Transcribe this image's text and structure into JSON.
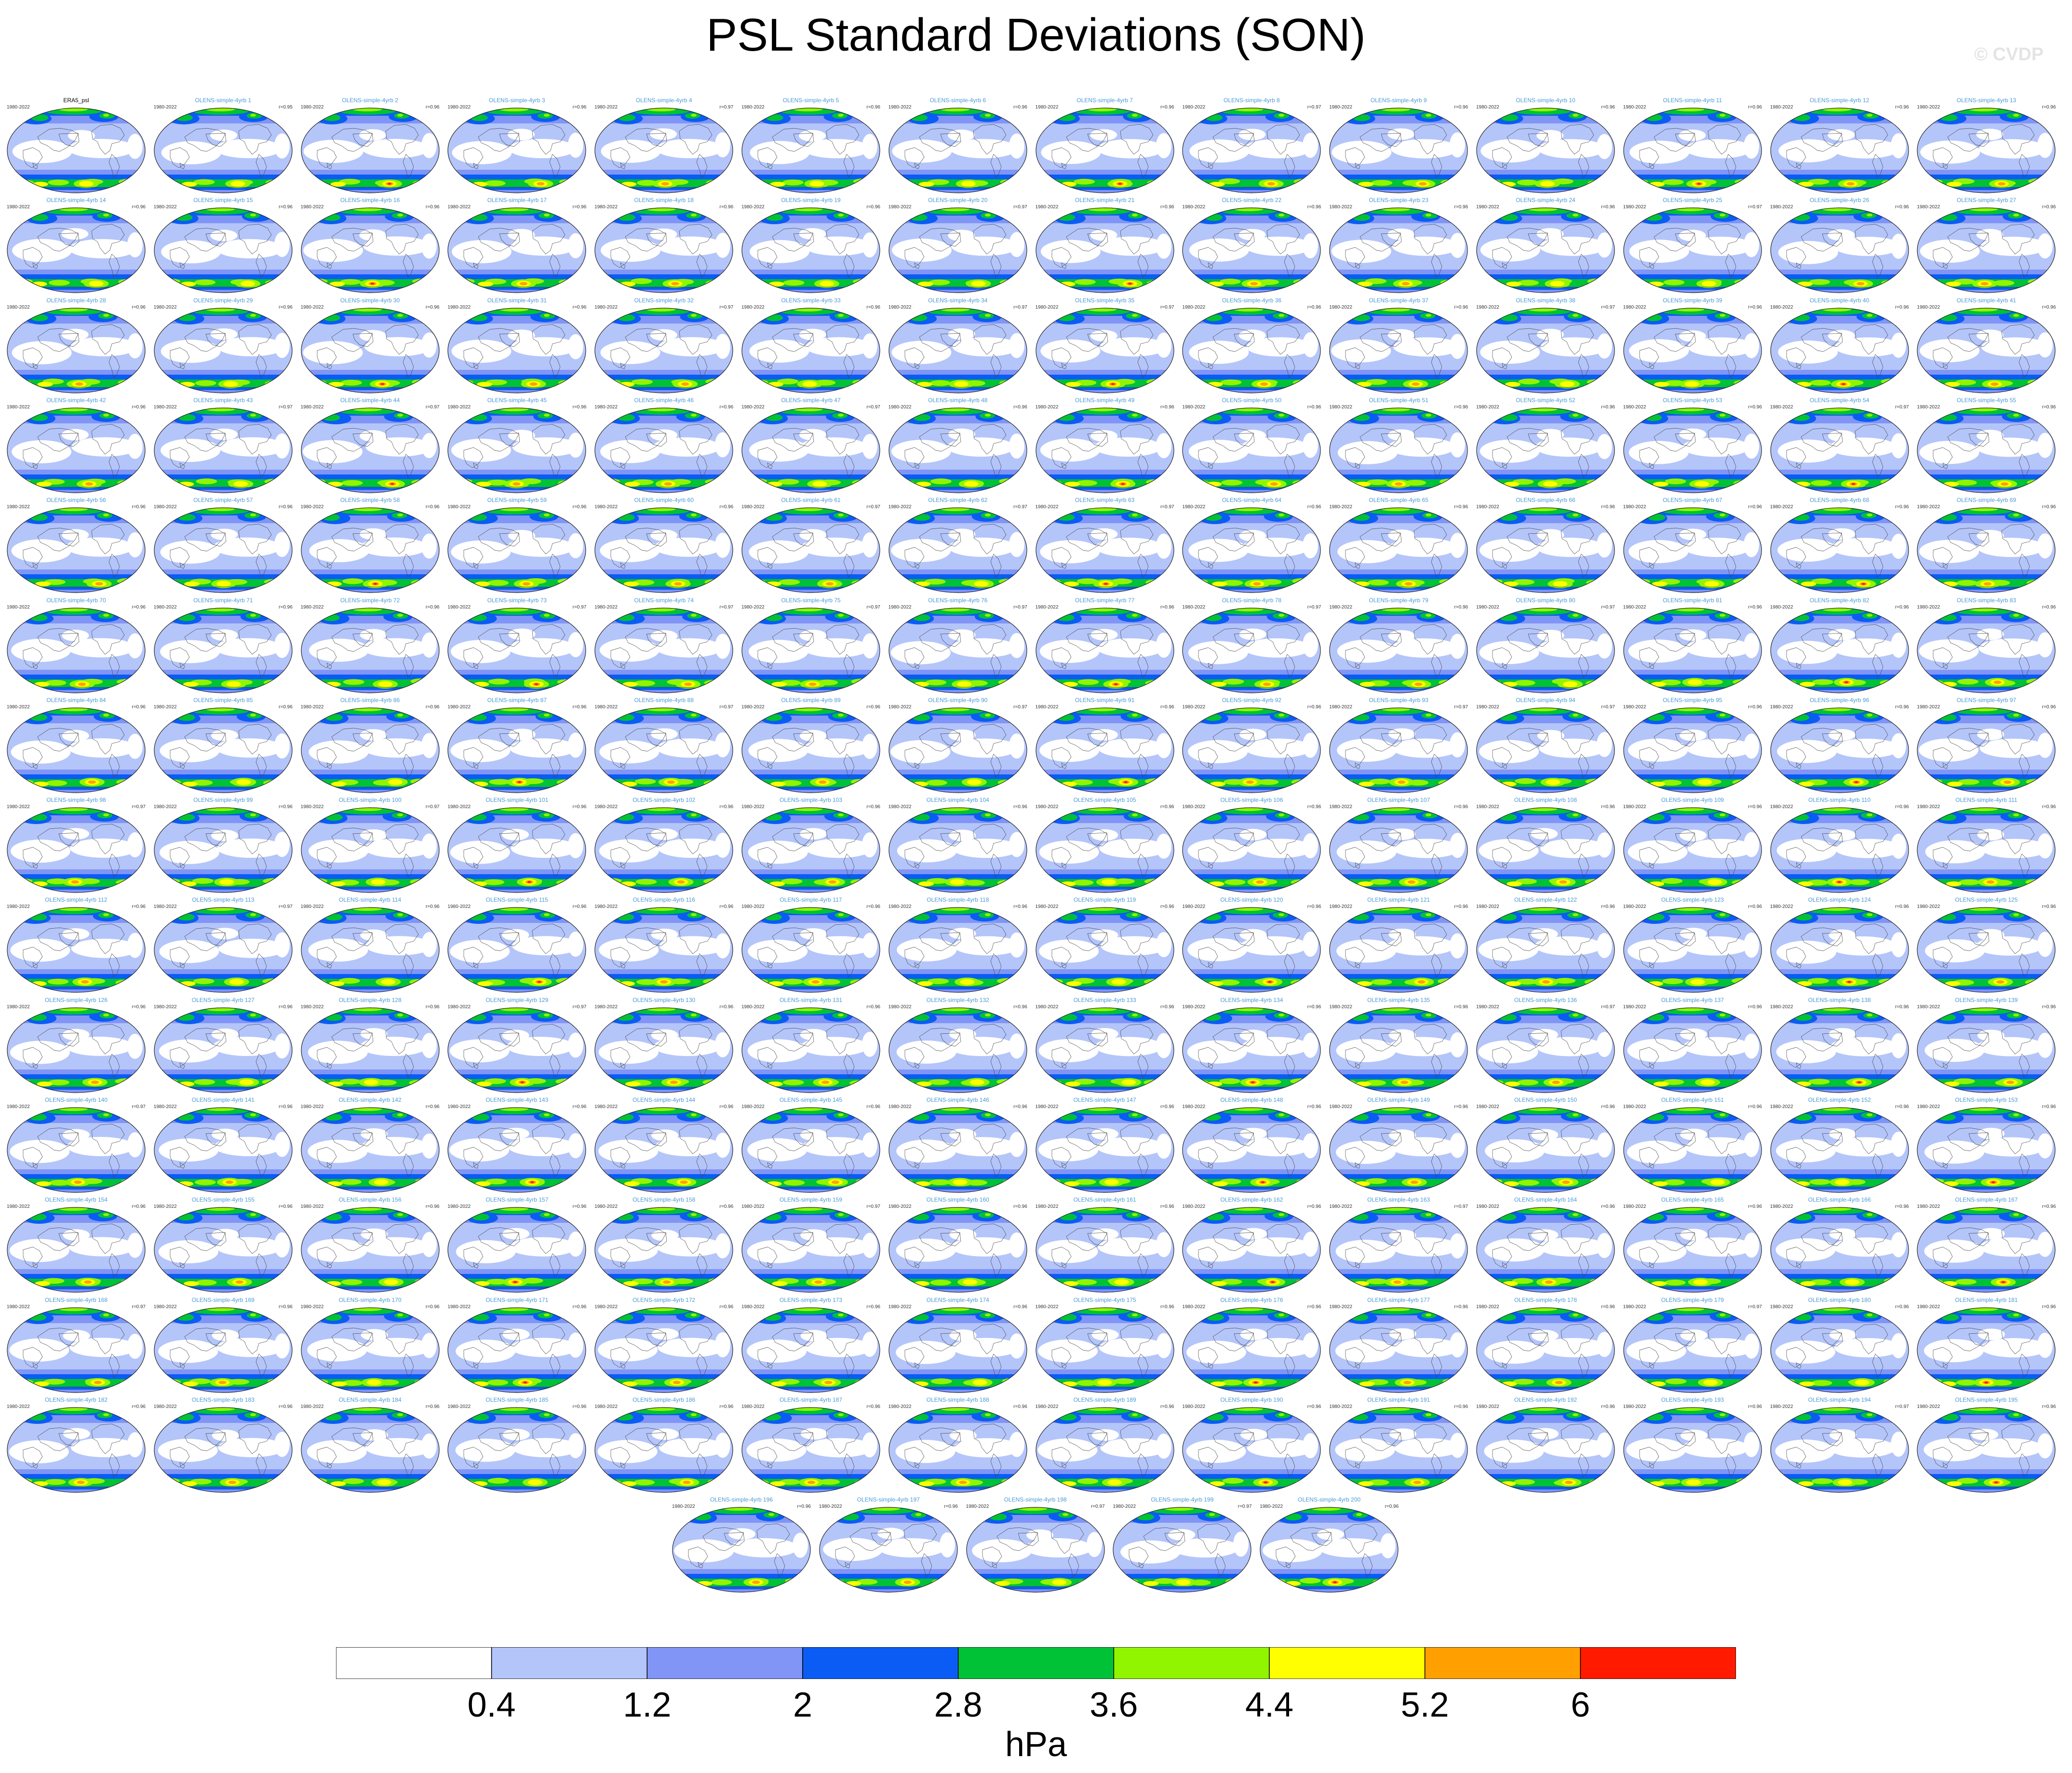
{
  "title": "PSL Standard Deviations (SON)",
  "watermark": "© CVDP",
  "panel_period": "1980-2022",
  "panels": [
    {
      "name": "ERA5_psl",
      "corr": ""
    },
    {
      "name": "OLENS-simple-4yrb 1",
      "corr": "r=0.95"
    },
    {
      "name": "OLENS-simple-4yrb 2",
      "corr": "r=0.96"
    },
    {
      "name": "OLENS-simple-4yrb 3",
      "corr": "r=0.96"
    },
    {
      "name": "OLENS-simple-4yrb 4",
      "corr": "r=0.97"
    },
    {
      "name": "OLENS-simple-4yrb 5",
      "corr": "r=0.96"
    },
    {
      "name": "OLENS-simple-4yrb 6",
      "corr": "r=0.96"
    },
    {
      "name": "OLENS-simple-4yrb 7",
      "corr": "r=0.96"
    },
    {
      "name": "OLENS-simple-4yrb 8",
      "corr": "r=0.97"
    },
    {
      "name": "OLENS-simple-4yrb 9",
      "corr": "r=0.96"
    },
    {
      "name": "OLENS-simple-4yrb 10",
      "corr": "r=0.96"
    },
    {
      "name": "OLENS-simple-4yrb 11",
      "corr": "r=0.96"
    },
    {
      "name": "OLENS-simple-4yrb 12",
      "corr": "r=0.96"
    },
    {
      "name": "OLENS-simple-4yrb 13",
      "corr": "r=0.96"
    },
    {
      "name": "OLENS-simple-4yrb 14",
      "corr": "r=0.96"
    },
    {
      "name": "OLENS-simple-4yrb 15",
      "corr": "r=0.96"
    },
    {
      "name": "OLENS-simple-4yrb 16",
      "corr": "r=0.96"
    },
    {
      "name": "OLENS-simple-4yrb 17",
      "corr": "r=0.96"
    },
    {
      "name": "OLENS-simple-4yrb 18",
      "corr": "r=0.96"
    },
    {
      "name": "OLENS-simple-4yrb 19",
      "corr": "r=0.96"
    },
    {
      "name": "OLENS-simple-4yrb 20",
      "corr": "r=0.97"
    },
    {
      "name": "OLENS-simple-4yrb 21",
      "corr": "r=0.96"
    },
    {
      "name": "OLENS-simple-4yrb 22",
      "corr": "r=0.96"
    },
    {
      "name": "OLENS-simple-4yrb 23",
      "corr": "r=0.96"
    },
    {
      "name": "OLENS-simple-4yrb 24",
      "corr": "r=0.96"
    },
    {
      "name": "OLENS-simple-4yrb 25",
      "corr": "r=0.97"
    },
    {
      "name": "OLENS-simple-4yrb 26",
      "corr": "r=0.96"
    },
    {
      "name": "OLENS-simple-4yrb 27",
      "corr": "r=0.96"
    },
    {
      "name": "OLENS-simple-4yrb 28",
      "corr": "r=0.96"
    },
    {
      "name": "OLENS-simple-4yrb 29",
      "corr": "r=0.96"
    },
    {
      "name": "OLENS-simple-4yrb 30",
      "corr": "r=0.96"
    },
    {
      "name": "OLENS-simple-4yrb 31",
      "corr": "r=0.96"
    },
    {
      "name": "OLENS-simple-4yrb 32",
      "corr": "r=0.97"
    },
    {
      "name": "OLENS-simple-4yrb 33",
      "corr": "r=0.96"
    },
    {
      "name": "OLENS-simple-4yrb 34",
      "corr": "r=0.97"
    },
    {
      "name": "OLENS-simple-4yrb 35",
      "corr": "r=0.97"
    },
    {
      "name": "OLENS-simple-4yrb 36",
      "corr": "r=0.96"
    },
    {
      "name": "OLENS-simple-4yrb 37",
      "corr": "r=0.96"
    },
    {
      "name": "OLENS-simple-4yrb 38",
      "corr": "r=0.97"
    },
    {
      "name": "OLENS-simple-4yrb 39",
      "corr": "r=0.96"
    },
    {
      "name": "OLENS-simple-4yrb 40",
      "corr": "r=0.96"
    },
    {
      "name": "OLENS-simple-4yrb 41",
      "corr": "r=0.96"
    },
    {
      "name": "OLENS-simple-4yrb 42",
      "corr": "r=0.96"
    },
    {
      "name": "OLENS-simple-4yrb 43",
      "corr": "r=0.97"
    },
    {
      "name": "OLENS-simple-4yrb 44",
      "corr": "r=0.97"
    },
    {
      "name": "OLENS-simple-4yrb 45",
      "corr": "r=0.96"
    },
    {
      "name": "OLENS-simple-4yrb 46",
      "corr": "r=0.96"
    },
    {
      "name": "OLENS-simple-4yrb 47",
      "corr": "r=0.97"
    },
    {
      "name": "OLENS-simple-4yrb 48",
      "corr": "r=0.96"
    },
    {
      "name": "OLENS-simple-4yrb 49",
      "corr": "r=0.96"
    },
    {
      "name": "OLENS-simple-4yrb 50",
      "corr": "r=0.96"
    },
    {
      "name": "OLENS-simple-4yrb 51",
      "corr": "r=0.96"
    },
    {
      "name": "OLENS-simple-4yrb 52",
      "corr": "r=0.96"
    },
    {
      "name": "OLENS-simple-4yrb 53",
      "corr": "r=0.96"
    },
    {
      "name": "OLENS-simple-4yrb 54",
      "corr": "r=0.97"
    },
    {
      "name": "OLENS-simple-4yrb 55",
      "corr": "r=0.96"
    },
    {
      "name": "OLENS-simple-4yrb 56",
      "corr": "r=0.96"
    },
    {
      "name": "OLENS-simple-4yrb 57",
      "corr": "r=0.96"
    },
    {
      "name": "OLENS-simple-4yrb 58",
      "corr": "r=0.96"
    },
    {
      "name": "OLENS-simple-4yrb 59",
      "corr": "r=0.96"
    },
    {
      "name": "OLENS-simple-4yrb 60",
      "corr": "r=0.96"
    },
    {
      "name": "OLENS-simple-4yrb 61",
      "corr": "r=0.97"
    },
    {
      "name": "OLENS-simple-4yrb 62",
      "corr": "r=0.97"
    },
    {
      "name": "OLENS-simple-4yrb 63",
      "corr": "r=0.97"
    },
    {
      "name": "OLENS-simple-4yrb 64",
      "corr": "r=0.96"
    },
    {
      "name": "OLENS-simple-4yrb 65",
      "corr": "r=0.96"
    },
    {
      "name": "OLENS-simple-4yrb 66",
      "corr": "r=0.96"
    },
    {
      "name": "OLENS-simple-4yrb 67",
      "corr": "r=0.96"
    },
    {
      "name": "OLENS-simple-4yrb 68",
      "corr": "r=0.96"
    },
    {
      "name": "OLENS-simple-4yrb 69",
      "corr": "r=0.96"
    },
    {
      "name": "OLENS-simple-4yrb 70",
      "corr": "r=0.96"
    },
    {
      "name": "OLENS-simple-4yrb 71",
      "corr": "r=0.96"
    },
    {
      "name": "OLENS-simple-4yrb 72",
      "corr": "r=0.96"
    },
    {
      "name": "OLENS-simple-4yrb 73",
      "corr": "r=0.97"
    },
    {
      "name": "OLENS-simple-4yrb 74",
      "corr": "r=0.97"
    },
    {
      "name": "OLENS-simple-4yrb 75",
      "corr": "r=0.97"
    },
    {
      "name": "OLENS-simple-4yrb 76",
      "corr": "r=0.97"
    },
    {
      "name": "OLENS-simple-4yrb 77",
      "corr": "r=0.96"
    },
    {
      "name": "OLENS-simple-4yrb 78",
      "corr": "r=0.97"
    },
    {
      "name": "OLENS-simple-4yrb 79",
      "corr": "r=0.96"
    },
    {
      "name": "OLENS-simple-4yrb 80",
      "corr": "r=0.97"
    },
    {
      "name": "OLENS-simple-4yrb 81",
      "corr": "r=0.96"
    },
    {
      "name": "OLENS-simple-4yrb 82",
      "corr": "r=0.96"
    },
    {
      "name": "OLENS-simple-4yrb 83",
      "corr": "r=0.96"
    },
    {
      "name": "OLENS-simple-4yrb 84",
      "corr": "r=0.96"
    },
    {
      "name": "OLENS-simple-4yrb 85",
      "corr": "r=0.96"
    },
    {
      "name": "OLENS-simple-4yrb 86",
      "corr": "r=0.96"
    },
    {
      "name": "OLENS-simple-4yrb 87",
      "corr": "r=0.96"
    },
    {
      "name": "OLENS-simple-4yrb 88",
      "corr": "r=0.97"
    },
    {
      "name": "OLENS-simple-4yrb 89",
      "corr": "r=0.96"
    },
    {
      "name": "OLENS-simple-4yrb 90",
      "corr": "r=0.97"
    },
    {
      "name": "OLENS-simple-4yrb 91",
      "corr": "r=0.96"
    },
    {
      "name": "OLENS-simple-4yrb 92",
      "corr": "r=0.96"
    },
    {
      "name": "OLENS-simple-4yrb 93",
      "corr": "r=0.97"
    },
    {
      "name": "OLENS-simple-4yrb 94",
      "corr": "r=0.97"
    },
    {
      "name": "OLENS-simple-4yrb 95",
      "corr": "r=0.96"
    },
    {
      "name": "OLENS-simple-4yrb 96",
      "corr": "r=0.96"
    },
    {
      "name": "OLENS-simple-4yrb 97",
      "corr": "r=0.96"
    },
    {
      "name": "OLENS-simple-4yrb 98",
      "corr": "r=0.97"
    },
    {
      "name": "OLENS-simple-4yrb 99",
      "corr": "r=0.96"
    },
    {
      "name": "OLENS-simple-4yrb 100",
      "corr": "r=0.97"
    },
    {
      "name": "OLENS-simple-4yrb 101",
      "corr": "r=0.96"
    },
    {
      "name": "OLENS-simple-4yrb 102",
      "corr": "r=0.96"
    },
    {
      "name": "OLENS-simple-4yrb 103",
      "corr": "r=0.96"
    },
    {
      "name": "OLENS-simple-4yrb 104",
      "corr": "r=0.96"
    },
    {
      "name": "OLENS-simple-4yrb 105",
      "corr": "r=0.96"
    },
    {
      "name": "OLENS-simple-4yrb 106",
      "corr": "r=0.96"
    },
    {
      "name": "OLENS-simple-4yrb 107",
      "corr": "r=0.96"
    },
    {
      "name": "OLENS-simple-4yrb 108",
      "corr": "r=0.96"
    },
    {
      "name": "OLENS-simple-4yrb 109",
      "corr": "r=0.96"
    },
    {
      "name": "OLENS-simple-4yrb 110",
      "corr": "r=0.96"
    },
    {
      "name": "OLENS-simple-4yrb 111",
      "corr": "r=0.96"
    },
    {
      "name": "OLENS-simple-4yrb 112",
      "corr": "r=0.96"
    },
    {
      "name": "OLENS-simple-4yrb 113",
      "corr": "r=0.97"
    },
    {
      "name": "OLENS-simple-4yrb 114",
      "corr": "r=0.96"
    },
    {
      "name": "OLENS-simple-4yrb 115",
      "corr": "r=0.96"
    },
    {
      "name": "OLENS-simple-4yrb 116",
      "corr": "r=0.96"
    },
    {
      "name": "OLENS-simple-4yrb 117",
      "corr": "r=0.96"
    },
    {
      "name": "OLENS-simple-4yrb 118",
      "corr": "r=0.96"
    },
    {
      "name": "OLENS-simple-4yrb 119",
      "corr": "r=0.96"
    },
    {
      "name": "OLENS-simple-4yrb 120",
      "corr": "r=0.96"
    },
    {
      "name": "OLENS-simple-4yrb 121",
      "corr": "r=0.96"
    },
    {
      "name": "OLENS-simple-4yrb 122",
      "corr": "r=0.96"
    },
    {
      "name": "OLENS-simple-4yrb 123",
      "corr": "r=0.96"
    },
    {
      "name": "OLENS-simple-4yrb 124",
      "corr": "r=0.96"
    },
    {
      "name": "OLENS-simple-4yrb 125",
      "corr": "r=0.96"
    },
    {
      "name": "OLENS-simple-4yrb 126",
      "corr": "r=0.96"
    },
    {
      "name": "OLENS-simple-4yrb 127",
      "corr": "r=0.96"
    },
    {
      "name": "OLENS-simple-4yrb 128",
      "corr": "r=0.96"
    },
    {
      "name": "OLENS-simple-4yrb 129",
      "corr": "r=0.97"
    },
    {
      "name": "OLENS-simple-4yrb 130",
      "corr": "r=0.96"
    },
    {
      "name": "OLENS-simple-4yrb 131",
      "corr": "r=0.96"
    },
    {
      "name": "OLENS-simple-4yrb 132",
      "corr": "r=0.96"
    },
    {
      "name": "OLENS-simple-4yrb 133",
      "corr": "r=0.96"
    },
    {
      "name": "OLENS-simple-4yrb 134",
      "corr": "r=0.96"
    },
    {
      "name": "OLENS-simple-4yrb 135",
      "corr": "r=0.96"
    },
    {
      "name": "OLENS-simple-4yrb 136",
      "corr": "r=0.97"
    },
    {
      "name": "OLENS-simple-4yrb 137",
      "corr": "r=0.96"
    },
    {
      "name": "OLENS-simple-4yrb 138",
      "corr": "r=0.96"
    },
    {
      "name": "OLENS-simple-4yrb 139",
      "corr": "r=0.96"
    },
    {
      "name": "OLENS-simple-4yrb 140",
      "corr": "r=0.97"
    },
    {
      "name": "OLENS-simple-4yrb 141",
      "corr": "r=0.96"
    },
    {
      "name": "OLENS-simple-4yrb 142",
      "corr": "r=0.96"
    },
    {
      "name": "OLENS-simple-4yrb 143",
      "corr": "r=0.96"
    },
    {
      "name": "OLENS-simple-4yrb 144",
      "corr": "r=0.96"
    },
    {
      "name": "OLENS-simple-4yrb 145",
      "corr": "r=0.96"
    },
    {
      "name": "OLENS-simple-4yrb 146",
      "corr": "r=0.96"
    },
    {
      "name": "OLENS-simple-4yrb 147",
      "corr": "r=0.96"
    },
    {
      "name": "OLENS-simple-4yrb 148",
      "corr": "r=0.96"
    },
    {
      "name": "OLENS-simple-4yrb 149",
      "corr": "r=0.96"
    },
    {
      "name": "OLENS-simple-4yrb 150",
      "corr": "r=0.96"
    },
    {
      "name": "OLENS-simple-4yrb 151",
      "corr": "r=0.96"
    },
    {
      "name": "OLENS-simple-4yrb 152",
      "corr": "r=0.96"
    },
    {
      "name": "OLENS-simple-4yrb 153",
      "corr": "r=0.96"
    },
    {
      "name": "OLENS-simple-4yrb 154",
      "corr": "r=0.96"
    },
    {
      "name": "OLENS-simple-4yrb 155",
      "corr": "r=0.96"
    },
    {
      "name": "OLENS-simple-4yrb 156",
      "corr": "r=0.96"
    },
    {
      "name": "OLENS-simple-4yrb 157",
      "corr": "r=0.96"
    },
    {
      "name": "OLENS-simple-4yrb 158",
      "corr": "r=0.96"
    },
    {
      "name": "OLENS-simple-4yrb 159",
      "corr": "r=0.97"
    },
    {
      "name": "OLENS-simple-4yrb 160",
      "corr": "r=0.96"
    },
    {
      "name": "OLENS-simple-4yrb 161",
      "corr": "r=0.96"
    },
    {
      "name": "OLENS-simple-4yrb 162",
      "corr": "r=0.96"
    },
    {
      "name": "OLENS-simple-4yrb 163",
      "corr": "r=0.97"
    },
    {
      "name": "OLENS-simple-4yrb 164",
      "corr": "r=0.96"
    },
    {
      "name": "OLENS-simple-4yrb 165",
      "corr": "r=0.96"
    },
    {
      "name": "OLENS-simple-4yrb 166",
      "corr": "r=0.96"
    },
    {
      "name": "OLENS-simple-4yrb 167",
      "corr": "r=0.96"
    },
    {
      "name": "OLENS-simple-4yrb 168",
      "corr": "r=0.97"
    },
    {
      "name": "OLENS-simple-4yrb 169",
      "corr": "r=0.96"
    },
    {
      "name": "OLENS-simple-4yrb 170",
      "corr": "r=0.96"
    },
    {
      "name": "OLENS-simple-4yrb 171",
      "corr": "r=0.96"
    },
    {
      "name": "OLENS-simple-4yrb 172",
      "corr": "r=0.96"
    },
    {
      "name": "OLENS-simple-4yrb 173",
      "corr": "r=0.96"
    },
    {
      "name": "OLENS-simple-4yrb 174",
      "corr": "r=0.96"
    },
    {
      "name": "OLENS-simple-4yrb 175",
      "corr": "r=0.96"
    },
    {
      "name": "OLENS-simple-4yrb 176",
      "corr": "r=0.96"
    },
    {
      "name": "OLENS-simple-4yrb 177",
      "corr": "r=0.96"
    },
    {
      "name": "OLENS-simple-4yrb 178",
      "corr": "r=0.96"
    },
    {
      "name": "OLENS-simple-4yrb 179",
      "corr": "r=0.97"
    },
    {
      "name": "OLENS-simple-4yrb 180",
      "corr": "r=0.96"
    },
    {
      "name": "OLENS-simple-4yrb 181",
      "corr": "r=0.96"
    },
    {
      "name": "OLENS-simple-4yrb 182",
      "corr": "r=0.96"
    },
    {
      "name": "OLENS-simple-4yrb 183",
      "corr": "r=0.96"
    },
    {
      "name": "OLENS-simple-4yrb 184",
      "corr": "r=0.96"
    },
    {
      "name": "OLENS-simple-4yrb 185",
      "corr": "r=0.96"
    },
    {
      "name": "OLENS-simple-4yrb 186",
      "corr": "r=0.96"
    },
    {
      "name": "OLENS-simple-4yrb 187",
      "corr": "r=0.96"
    },
    {
      "name": "OLENS-simple-4yrb 188",
      "corr": "r=0.96"
    },
    {
      "name": "OLENS-simple-4yrb 189",
      "corr": "r=0.96"
    },
    {
      "name": "OLENS-simple-4yrb 190",
      "corr": "r=0.96"
    },
    {
      "name": "OLENS-simple-4yrb 191",
      "corr": "r=0.96"
    },
    {
      "name": "OLENS-simple-4yrb 192",
      "corr": "r=0.96"
    },
    {
      "name": "OLENS-simple-4yrb 193",
      "corr": "r=0.96"
    },
    {
      "name": "OLENS-simple-4yrb 194",
      "corr": "r=0.97"
    },
    {
      "name": "OLENS-simple-4yrb 195",
      "corr": "r=0.96"
    },
    {
      "name": "OLENS-simple-4yrb 196",
      "corr": "r=0.96"
    },
    {
      "name": "OLENS-simple-4yrb 197",
      "corr": "r=0.96"
    },
    {
      "name": "OLENS-simple-4yrb 198",
      "corr": "r=0.97"
    },
    {
      "name": "OLENS-simple-4yrb 199",
      "corr": "r=0.97"
    },
    {
      "name": "OLENS-simple-4yrb 200",
      "corr": "r=0.96"
    }
  ],
  "colorbar": {
    "units": "hPa",
    "tick_labels": [
      "0.4",
      "1.2",
      "2",
      "2.8",
      "3.6",
      "4.4",
      "5.2",
      "6"
    ],
    "colors": [
      "#ffffff",
      "#b4c5fa",
      "#8095f5",
      "#0a5cf5",
      "#00c236",
      "#91f500",
      "#ffff00",
      "#ffa000",
      "#ff1a00"
    ]
  }
}
